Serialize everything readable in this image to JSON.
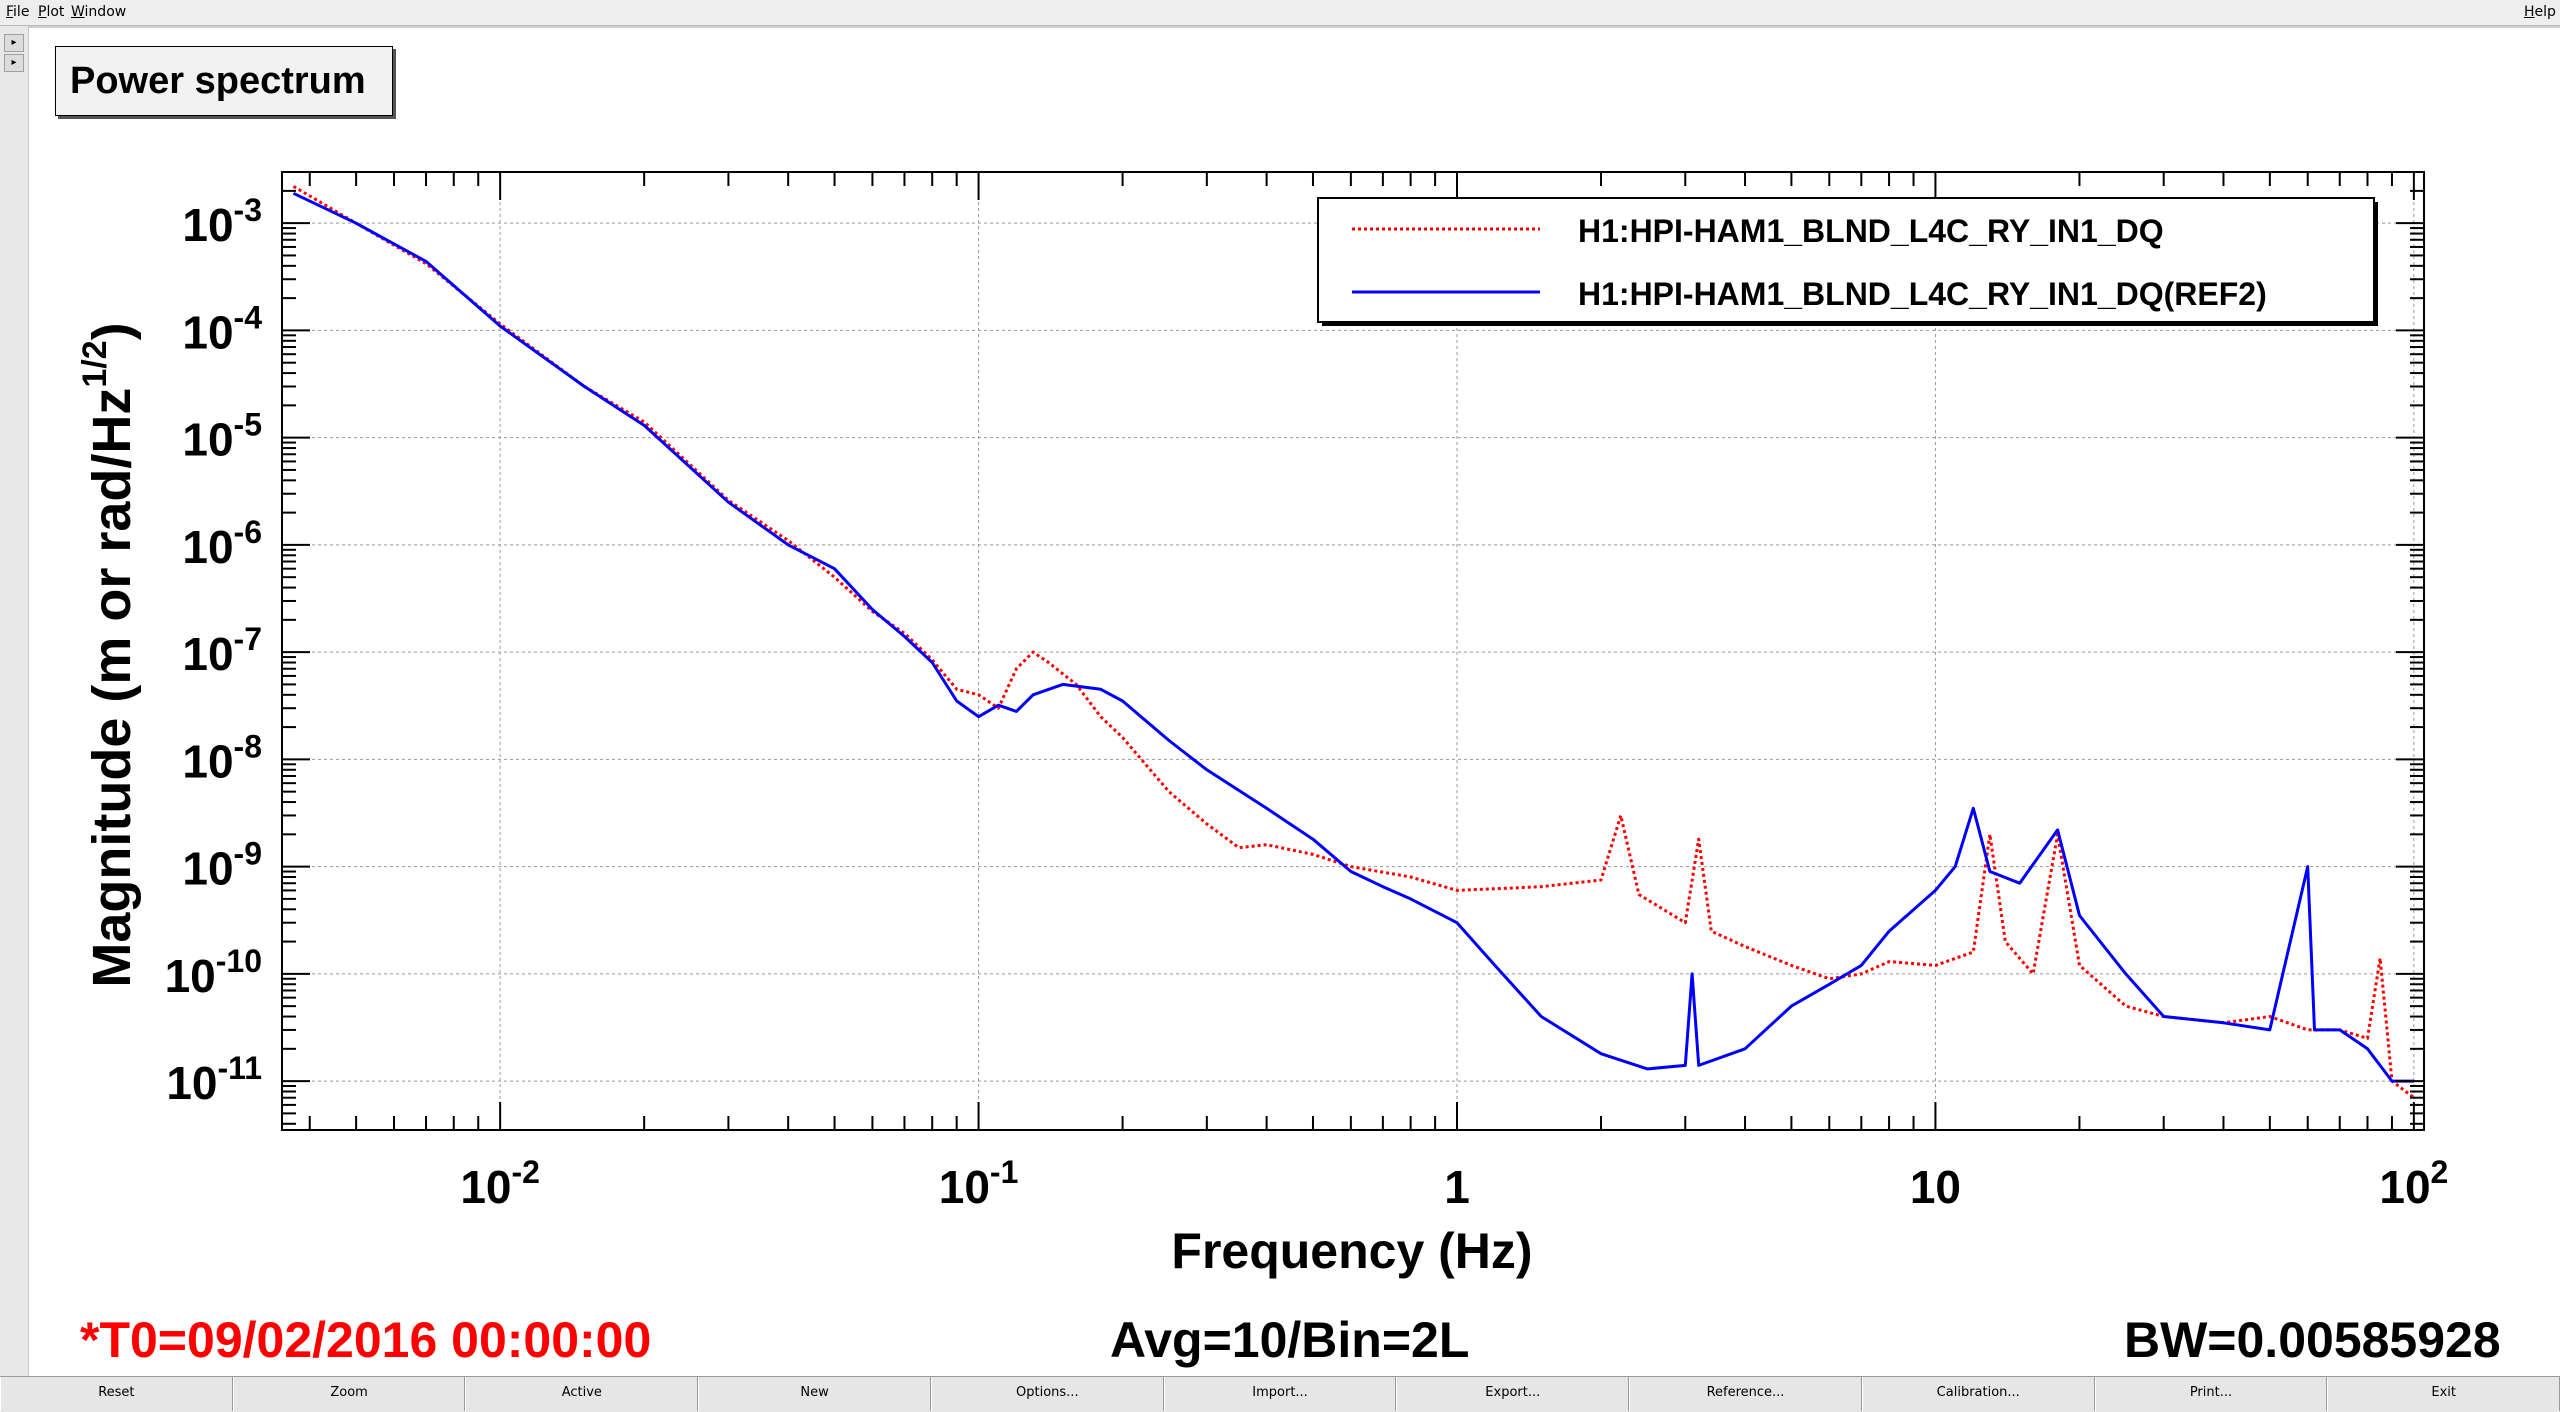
{
  "menubar": {
    "file": "File",
    "plot": "Plot",
    "window": "Window",
    "help": "Help"
  },
  "gutter": {
    "arrow_up_icon": "triangle-right-icon",
    "arrow_down_icon": "triangle-right-icon"
  },
  "plot_title": "Power spectrum",
  "chart_data": {
    "type": "line",
    "xlabel": "Frequency (Hz)",
    "ylabel": "Magnitude (m or rad/Hz",
    "ylabel_sup": "1/2",
    "ylabel_end": ")",
    "x_scale": "log",
    "y_scale": "log",
    "xlim": [
      0.0035,
      105
    ],
    "ylim": [
      3.5e-12,
      0.003
    ],
    "grid": true,
    "legend_position": "top-right",
    "x_ticks": [
      {
        "value": 0.01,
        "base": "10",
        "exp": "-2"
      },
      {
        "value": 0.1,
        "base": "10",
        "exp": "-1"
      },
      {
        "value": 1,
        "base": "1",
        "exp": ""
      },
      {
        "value": 10,
        "base": "10",
        "exp": ""
      },
      {
        "value": 100,
        "base": "10",
        "exp": "2"
      }
    ],
    "y_ticks": [
      {
        "value": 0.001,
        "base": "10",
        "exp": "-3"
      },
      {
        "value": 0.0001,
        "base": "10",
        "exp": "-4"
      },
      {
        "value": 1e-05,
        "base": "10",
        "exp": "-5"
      },
      {
        "value": 1e-06,
        "base": "10",
        "exp": "-6"
      },
      {
        "value": 1e-07,
        "base": "10",
        "exp": "-7"
      },
      {
        "value": 1e-08,
        "base": "10",
        "exp": "-8"
      },
      {
        "value": 1e-09,
        "base": "10",
        "exp": "-9"
      },
      {
        "value": 1e-10,
        "base": "10",
        "exp": "-10"
      },
      {
        "value": 1e-11,
        "base": "10",
        "exp": "-11"
      }
    ],
    "series": [
      {
        "name": "H1:HPI-HAM1_BLND_L4C_RY_IN1_DQ",
        "color": "#ff0000",
        "style": "dotted",
        "points": [
          [
            0.0037,
            0.0022
          ],
          [
            0.005,
            0.001
          ],
          [
            0.007,
            0.00042
          ],
          [
            0.01,
            0.000115
          ],
          [
            0.015,
            3e-05
          ],
          [
            0.02,
            1.4e-05
          ],
          [
            0.03,
            2.6e-06
          ],
          [
            0.04,
            1.1e-06
          ],
          [
            0.05,
            5e-07
          ],
          [
            0.06,
            2.4e-07
          ],
          [
            0.07,
            1.5e-07
          ],
          [
            0.08,
            8.5e-08
          ],
          [
            0.09,
            4.5e-08
          ],
          [
            0.1,
            4e-08
          ],
          [
            0.11,
            3e-08
          ],
          [
            0.12,
            7e-08
          ],
          [
            0.13,
            1e-07
          ],
          [
            0.14,
            8e-08
          ],
          [
            0.16,
            5e-08
          ],
          [
            0.18,
            2.5e-08
          ],
          [
            0.2,
            1.6e-08
          ],
          [
            0.25,
            5e-09
          ],
          [
            0.3,
            2.5e-09
          ],
          [
            0.35,
            1.5e-09
          ],
          [
            0.4,
            1.6e-09
          ],
          [
            0.5,
            1.3e-09
          ],
          [
            0.6,
            1e-09
          ],
          [
            0.8,
            8e-10
          ],
          [
            1.0,
            6e-10
          ],
          [
            1.5,
            6.5e-10
          ],
          [
            2.0,
            7.5e-10
          ],
          [
            2.2,
            3e-09
          ],
          [
            2.4,
            5.5e-10
          ],
          [
            3.0,
            3e-10
          ],
          [
            3.2,
            1.8e-09
          ],
          [
            3.4,
            2.5e-10
          ],
          [
            4.0,
            1.8e-10
          ],
          [
            5.0,
            1.2e-10
          ],
          [
            6.0,
            9e-11
          ],
          [
            7.0,
            1e-10
          ],
          [
            8.0,
            1.3e-10
          ],
          [
            10.0,
            1.2e-10
          ],
          [
            12.0,
            1.6e-10
          ],
          [
            13.0,
            2e-09
          ],
          [
            14.0,
            2e-10
          ],
          [
            16.0,
            1e-10
          ],
          [
            18.0,
            2e-09
          ],
          [
            20.0,
            1.2e-10
          ],
          [
            25.0,
            5e-11
          ],
          [
            30.0,
            4e-11
          ],
          [
            40.0,
            3.5e-11
          ],
          [
            50.0,
            4e-11
          ],
          [
            60.0,
            3e-11
          ],
          [
            70.0,
            3e-11
          ],
          [
            80.0,
            2.5e-11
          ],
          [
            85.0,
            1.4e-10
          ],
          [
            90.0,
            1e-11
          ],
          [
            100.0,
            7e-12
          ]
        ]
      },
      {
        "name": "H1:HPI-HAM1_BLND_L4C_RY_IN1_DQ(REF2)",
        "color": "#0000ff",
        "style": "solid",
        "points": [
          [
            0.0037,
            0.0019
          ],
          [
            0.005,
            0.001
          ],
          [
            0.007,
            0.00044
          ],
          [
            0.01,
            0.00011
          ],
          [
            0.015,
            3e-05
          ],
          [
            0.02,
            1.3e-05
          ],
          [
            0.03,
            2.5e-06
          ],
          [
            0.04,
            1e-06
          ],
          [
            0.05,
            6e-07
          ],
          [
            0.06,
            2.5e-07
          ],
          [
            0.07,
            1.4e-07
          ],
          [
            0.08,
            8e-08
          ],
          [
            0.09,
            3.5e-08
          ],
          [
            0.1,
            2.5e-08
          ],
          [
            0.11,
            3.2e-08
          ],
          [
            0.12,
            2.8e-08
          ],
          [
            0.13,
            4e-08
          ],
          [
            0.15,
            5e-08
          ],
          [
            0.18,
            4.5e-08
          ],
          [
            0.2,
            3.5e-08
          ],
          [
            0.25,
            1.5e-08
          ],
          [
            0.3,
            8e-09
          ],
          [
            0.4,
            3.5e-09
          ],
          [
            0.5,
            1.8e-09
          ],
          [
            0.6,
            9e-10
          ],
          [
            0.7,
            6.5e-10
          ],
          [
            0.8,
            5e-10
          ],
          [
            1.0,
            3e-10
          ],
          [
            1.2,
            1.2e-10
          ],
          [
            1.5,
            4e-11
          ],
          [
            2.0,
            1.8e-11
          ],
          [
            2.5,
            1.3e-11
          ],
          [
            3.0,
            1.4e-11
          ],
          [
            3.1,
            1e-10
          ],
          [
            3.2,
            1.4e-11
          ],
          [
            4.0,
            2e-11
          ],
          [
            5.0,
            5e-11
          ],
          [
            6.0,
            8e-11
          ],
          [
            7.0,
            1.2e-10
          ],
          [
            8.0,
            2.5e-10
          ],
          [
            10.0,
            6e-10
          ],
          [
            11.0,
            1e-09
          ],
          [
            12.0,
            3.5e-09
          ],
          [
            13.0,
            9e-10
          ],
          [
            15.0,
            7e-10
          ],
          [
            18.0,
            2.2e-09
          ],
          [
            20.0,
            3.5e-10
          ],
          [
            25.0,
            1e-10
          ],
          [
            30.0,
            4e-11
          ],
          [
            40.0,
            3.5e-11
          ],
          [
            50.0,
            3e-11
          ],
          [
            60.0,
            1e-09
          ],
          [
            62.0,
            3e-11
          ],
          [
            70.0,
            3e-11
          ],
          [
            80.0,
            2e-11
          ],
          [
            90.0,
            1e-11
          ],
          [
            100.0,
            1e-11
          ]
        ]
      }
    ]
  },
  "info": {
    "t0": "*T0=09/02/2016 00:00:00",
    "avg": "Avg=10/Bin=2L",
    "bw": "BW=0.00585928",
    "t0_color": "#ff0000"
  },
  "buttons": {
    "reset": "Reset",
    "zoom": "Zoom",
    "active": "Active",
    "new": "New",
    "options": "Options...",
    "import": "Import...",
    "export": "Export...",
    "reference": "Reference...",
    "calibration": "Calibration...",
    "print": "Print...",
    "exit": "Exit"
  }
}
